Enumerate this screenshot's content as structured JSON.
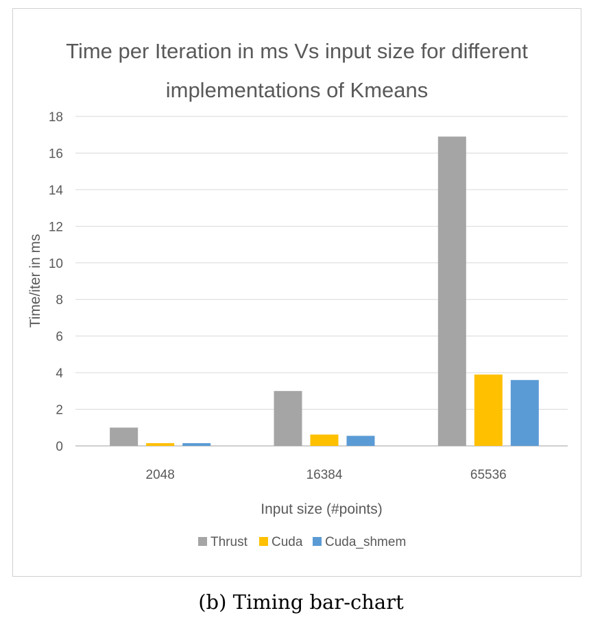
{
  "caption": "(b) Timing bar-chart",
  "chart_data": {
    "type": "bar",
    "title_lines": [
      "Time per Iteration in ms Vs input size for different",
      "implementations of Kmeans"
    ],
    "xlabel": "Input size (#points)",
    "ylabel": "Time/iter in ms",
    "categories": [
      "2048",
      "16384",
      "65536"
    ],
    "ylim": [
      0,
      18
    ],
    "yticks": [
      0,
      2,
      4,
      6,
      8,
      10,
      12,
      14,
      16,
      18
    ],
    "grid": true,
    "legend_position": "bottom",
    "series": [
      {
        "name": "Thrust",
        "color": "#a5a5a5",
        "values": [
          1.0,
          3.0,
          16.9
        ]
      },
      {
        "name": "Cuda",
        "color": "#ffc000",
        "values": [
          0.15,
          0.62,
          3.9
        ]
      },
      {
        "name": "Cuda_shmem",
        "color": "#5b9bd5",
        "values": [
          0.15,
          0.55,
          3.6
        ]
      }
    ]
  }
}
